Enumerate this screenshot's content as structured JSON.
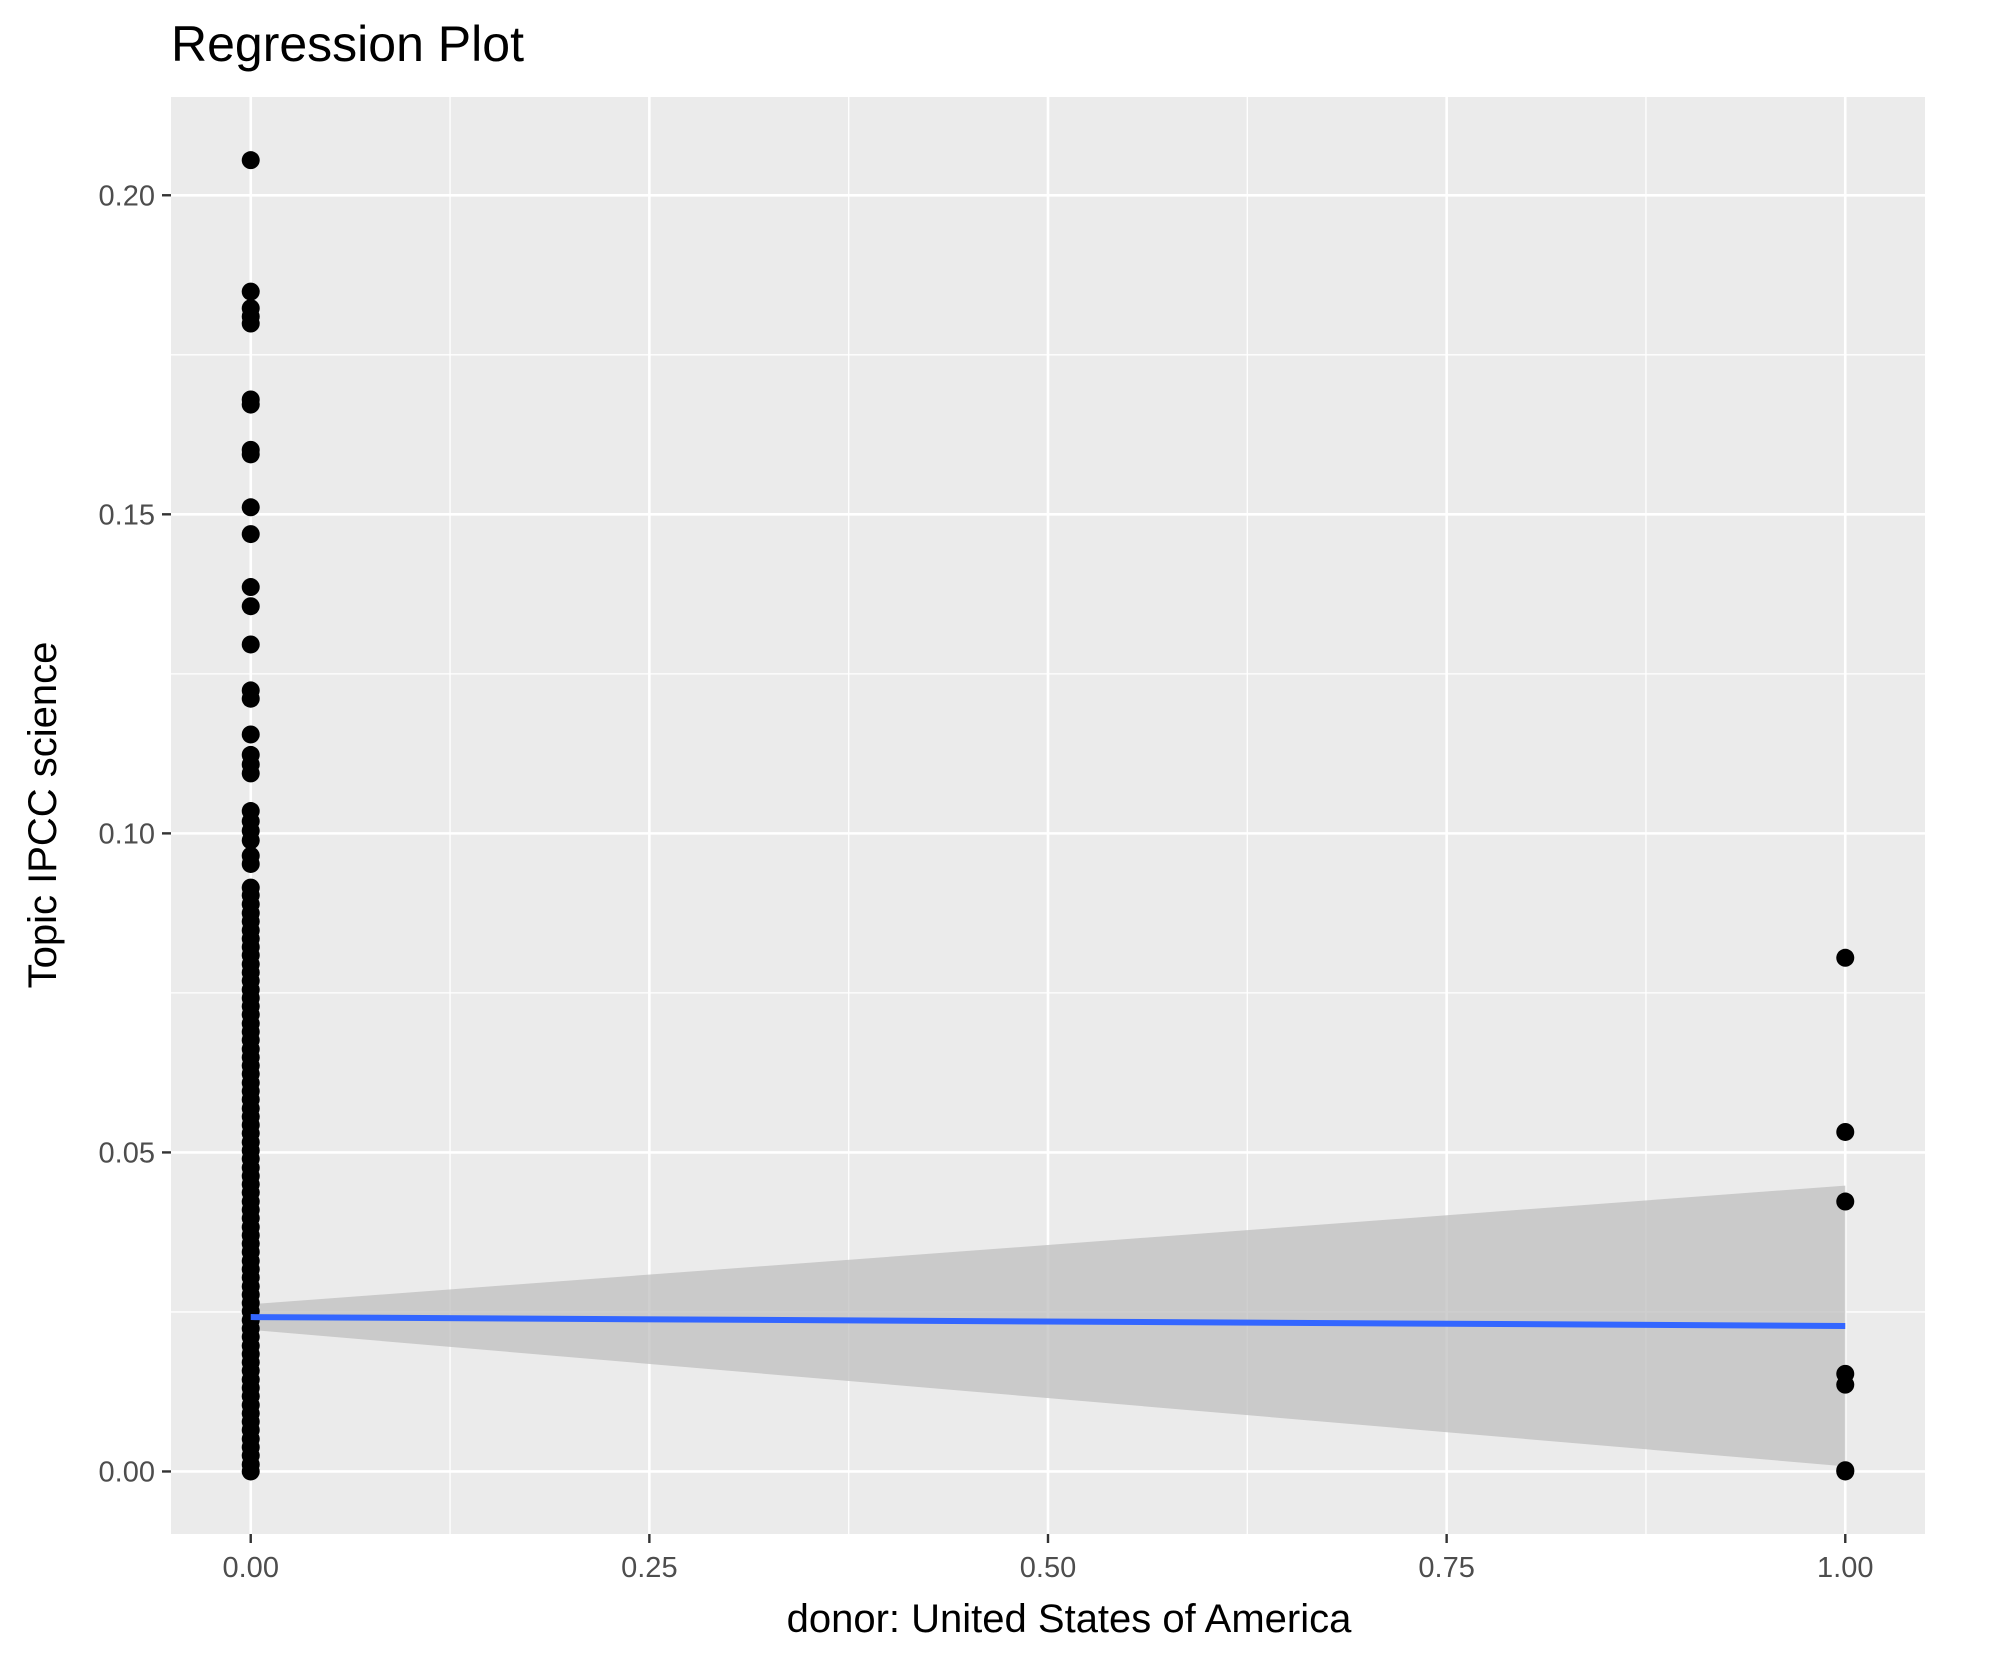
{
  "chart_data": {
    "type": "scatter",
    "title": "Regression Plot",
    "xlabel": "donor: United States of America",
    "ylabel": "Topic IPCC science",
    "xlim": [
      -0.05,
      1.05
    ],
    "ylim": [
      -0.0098,
      0.2154
    ],
    "x_ticks": [
      0,
      0.25,
      0.5,
      0.75,
      1
    ],
    "x_tick_labels": [
      "0.00",
      "0.25",
      "0.50",
      "0.75",
      "1.00"
    ],
    "y_ticks": [
      0,
      0.05,
      0.1,
      0.15,
      0.2
    ],
    "y_tick_labels": [
      "0.00",
      "0.05",
      "0.10",
      "0.15",
      "0.20"
    ],
    "grid": true,
    "legend": "none",
    "colors": {
      "panel": "#ebebeb",
      "grid": "#ffffff",
      "points": "#000000",
      "line": "#3366ff",
      "ribbon": "#bdbdbd"
    },
    "points": {
      "x0_y": [
        0.2055,
        0.1849,
        0.1823,
        0.181,
        0.1799,
        0.168,
        0.1672,
        0.1601,
        0.1594,
        0.1511,
        0.1469,
        0.1386,
        0.1356,
        0.1296,
        0.1224,
        0.1211,
        0.1155,
        0.1123,
        0.1108,
        0.1094,
        0.1035,
        0.1019,
        0.1004,
        0.0989,
        0.0965,
        0.0952,
        0.0915,
        0.0903,
        0.0889,
        0.0875,
        0.0862,
        0.0848,
        0.0835,
        0.0822,
        0.0809,
        0.0795,
        0.0782,
        0.0769,
        0.0755,
        0.0742,
        0.0729,
        0.0716,
        0.0702,
        0.0689,
        0.0676,
        0.0662,
        0.0649,
        0.0636,
        0.0623,
        0.0609,
        0.0596,
        0.0583,
        0.0569,
        0.0556,
        0.0543,
        0.053,
        0.0516,
        0.0503,
        0.049,
        0.0476,
        0.0463,
        0.045,
        0.0437,
        0.0423,
        0.041,
        0.0397,
        0.0383,
        0.037,
        0.0357,
        0.0344,
        0.033,
        0.0317,
        0.0304,
        0.029,
        0.0277,
        0.0264,
        0.0251,
        0.0237,
        0.0224,
        0.0211,
        0.0197,
        0.0184,
        0.0171,
        0.0158,
        0.0144,
        0.0131,
        0.0118,
        0.0104,
        0.0091,
        0.0078,
        0.0065,
        0.0051,
        0.0038,
        0.0025,
        0.0011,
        0.0
      ],
      "x1_y": [
        0.0805,
        0.0532,
        0.0423,
        0.0153,
        0.0136,
        0.0002,
        0.0
      ]
    },
    "regression": {
      "x": [
        0,
        1
      ],
      "y": [
        0.0242,
        0.0228
      ],
      "ci_lower": [
        0.0222,
        0.0008
      ],
      "ci_upper": [
        0.0262,
        0.0448
      ]
    }
  }
}
